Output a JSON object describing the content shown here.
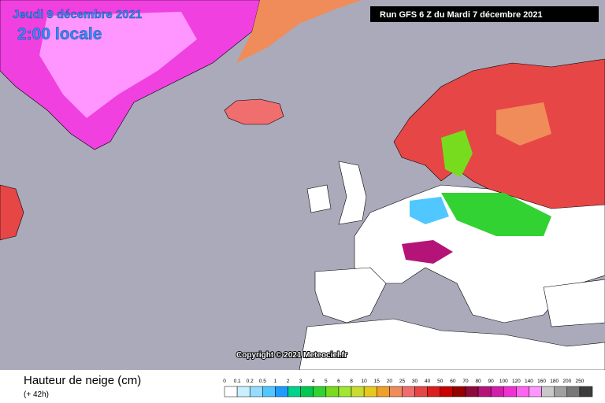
{
  "map": {
    "date": "Jeudi 9 décembre 2021",
    "hour": "2:00 locale",
    "run": "Run GFS 6 Z du Mardi 7 décembre 2021",
    "copyright": "Copyright © 2021 Meteociel.fr"
  },
  "legend": {
    "title": "Hauteur de neige (cm)",
    "subtitle": "(+ 42h)",
    "items": [
      {
        "label": "0",
        "color": "#ffffff"
      },
      {
        "label": "0.1",
        "color": "#c8f0ff"
      },
      {
        "label": "0.2",
        "color": "#96dcff"
      },
      {
        "label": "0.5",
        "color": "#50c8ff"
      },
      {
        "label": "1",
        "color": "#1e9bff"
      },
      {
        "label": "2",
        "color": "#00d28c"
      },
      {
        "label": "3",
        "color": "#00c850"
      },
      {
        "label": "4",
        "color": "#32d232"
      },
      {
        "label": "5",
        "color": "#78dc1e"
      },
      {
        "label": "6",
        "color": "#a0e632"
      },
      {
        "label": "8",
        "color": "#c8dc32"
      },
      {
        "label": "10",
        "color": "#e6c81e"
      },
      {
        "label": "15",
        "color": "#f0a028"
      },
      {
        "label": "20",
        "color": "#f08c5a"
      },
      {
        "label": "25",
        "color": "#f06e6e"
      },
      {
        "label": "30",
        "color": "#e64646"
      },
      {
        "label": "40",
        "color": "#dc1e1e"
      },
      {
        "label": "50",
        "color": "#c80000"
      },
      {
        "label": "60",
        "color": "#960000"
      },
      {
        "label": "70",
        "color": "#8c0a3c"
      },
      {
        "label": "80",
        "color": "#b41478"
      },
      {
        "label": "90",
        "color": "#d21eaa"
      },
      {
        "label": "100",
        "color": "#f032d2"
      },
      {
        "label": "120",
        "color": "#ff64f0"
      },
      {
        "label": "140",
        "color": "#ff96ff"
      },
      {
        "label": "160",
        "color": "#c8c8c8"
      },
      {
        "label": "180",
        "color": "#a0a0a0"
      },
      {
        "label": "200",
        "color": "#787878"
      },
      {
        "label": "250",
        "color": "#3c3c3c"
      }
    ]
  }
}
